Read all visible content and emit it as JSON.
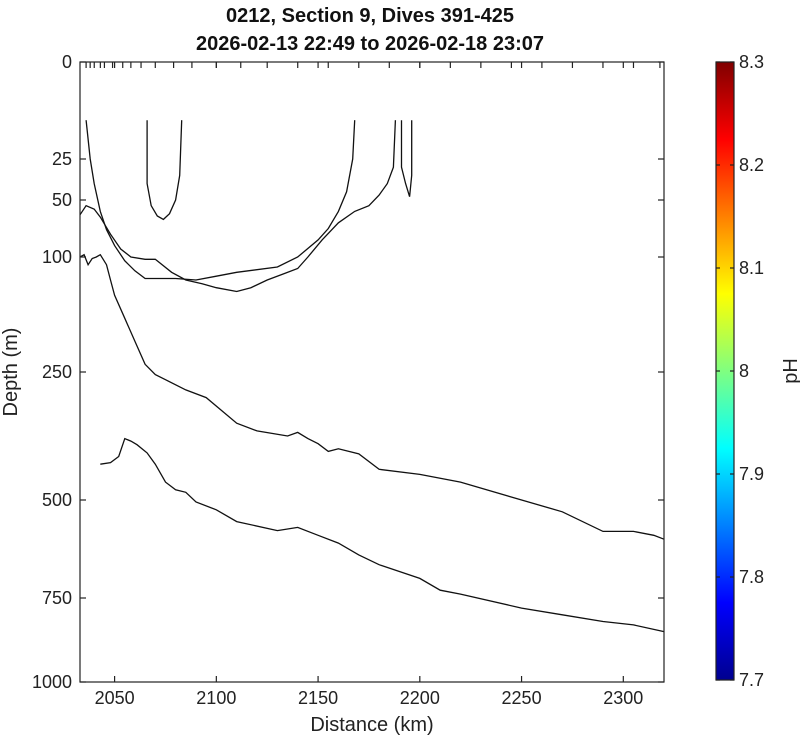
{
  "chart_data": {
    "type": "contour",
    "title_lines": [
      "0212, Section 9, Dives 391-425",
      "2026-02-13 22:49 to 2026-02-18 23:07"
    ],
    "xlabel": "Distance (km)",
    "ylabel": "Depth (m)",
    "xlim": [
      2033,
      2320
    ],
    "x_ticks": [
      2050,
      2100,
      2150,
      2200,
      2250,
      2300
    ],
    "y_scale": "stretched (depth)",
    "y_ticks": [
      {
        "value": 0,
        "label": "0"
      },
      {
        "value": 25,
        "label": "25"
      },
      {
        "value": 50,
        "label": "50"
      },
      {
        "value": 100,
        "label": "100"
      },
      {
        "value": 250,
        "label": "250"
      },
      {
        "value": 500,
        "label": "500"
      },
      {
        "value": 750,
        "label": "750"
      },
      {
        "value": 1000,
        "label": "1000"
      }
    ],
    "y_reference": [
      [
        0,
        0
      ],
      [
        25,
        25
      ],
      [
        50,
        50
      ],
      [
        100,
        100
      ],
      [
        250,
        250
      ],
      [
        500,
        500
      ],
      [
        750,
        750
      ],
      [
        1000,
        1000
      ]
    ],
    "dive_marks_km": [
      2036,
      2038,
      2040,
      2043,
      2045,
      2049,
      2054,
      2058,
      2063,
      2070,
      2079,
      2088,
      2100,
      2112,
      2125,
      2140,
      2155,
      2170,
      2185,
      2200,
      2215,
      2230,
      2245,
      2260,
      2275,
      2290,
      2305,
      2318
    ],
    "contours": [
      {
        "points": [
          [
            2066,
            15
          ],
          [
            2066,
            40
          ],
          [
            2068,
            55
          ],
          [
            2071,
            64
          ],
          [
            2074,
            67
          ],
          [
            2077,
            62
          ],
          [
            2080,
            50
          ],
          [
            2082,
            35
          ],
          [
            2083,
            15
          ]
        ]
      },
      {
        "points": [
          [
            2036,
            15
          ],
          [
            2038,
            25
          ],
          [
            2040,
            40
          ],
          [
            2043,
            60
          ],
          [
            2046,
            76
          ],
          [
            2050,
            90
          ],
          [
            2055,
            105
          ],
          [
            2060,
            118
          ],
          [
            2065,
            128
          ],
          [
            2080,
            128
          ],
          [
            2090,
            130
          ],
          [
            2100,
            125
          ],
          [
            2110,
            120
          ],
          [
            2130,
            113
          ],
          [
            2140,
            100
          ],
          [
            2150,
            85
          ],
          [
            2155,
            75
          ],
          [
            2160,
            60
          ],
          [
            2164,
            45
          ],
          [
            2167,
            25
          ],
          [
            2168,
            15
          ]
        ]
      },
      {
        "points": [
          [
            2188,
            15
          ],
          [
            2187,
            30
          ],
          [
            2184,
            40
          ],
          [
            2180,
            47
          ],
          [
            2175,
            55
          ],
          [
            2168,
            60
          ],
          [
            2160,
            70
          ],
          [
            2152,
            85
          ],
          [
            2145,
            100
          ],
          [
            2140,
            115
          ],
          [
            2133,
            122
          ],
          [
            2125,
            130
          ],
          [
            2117,
            140
          ],
          [
            2110,
            145
          ],
          [
            2100,
            140
          ],
          [
            2093,
            135
          ],
          [
            2085,
            130
          ],
          [
            2078,
            120
          ],
          [
            2070,
            103
          ],
          [
            2065,
            103
          ],
          [
            2058,
            100
          ],
          [
            2053,
            93
          ],
          [
            2048,
            80
          ],
          [
            2043,
            65
          ],
          [
            2040,
            58
          ],
          [
            2036,
            55
          ],
          [
            2033,
            63
          ]
        ]
      },
      {
        "points": [
          [
            2191,
            15
          ],
          [
            2191,
            30
          ],
          [
            2193,
            40
          ],
          [
            2195,
            48
          ],
          [
            2196,
            35
          ],
          [
            2196,
            15
          ]
        ]
      },
      {
        "points": [
          [
            2033,
            100
          ],
          [
            2035,
            98
          ],
          [
            2037,
            110
          ],
          [
            2039,
            102
          ],
          [
            2041,
            100
          ],
          [
            2043,
            98
          ],
          [
            2046,
            110
          ],
          [
            2048,
            130
          ],
          [
            2050,
            150
          ],
          [
            2055,
            180
          ],
          [
            2060,
            210
          ],
          [
            2065,
            240
          ],
          [
            2070,
            255
          ],
          [
            2075,
            265
          ],
          [
            2085,
            285
          ],
          [
            2095,
            300
          ],
          [
            2110,
            350
          ],
          [
            2120,
            365
          ],
          [
            2135,
            375
          ],
          [
            2140,
            368
          ],
          [
            2145,
            380
          ],
          [
            2150,
            390
          ],
          [
            2155,
            405
          ],
          [
            2160,
            400
          ],
          [
            2170,
            410
          ],
          [
            2180,
            440
          ],
          [
            2200,
            450
          ],
          [
            2220,
            465
          ],
          [
            2250,
            500
          ],
          [
            2270,
            530
          ],
          [
            2290,
            580
          ],
          [
            2305,
            580
          ],
          [
            2315,
            590
          ],
          [
            2320,
            600
          ]
        ]
      },
      {
        "points": [
          [
            2043,
            430
          ],
          [
            2048,
            427
          ],
          [
            2052,
            415
          ],
          [
            2055,
            380
          ],
          [
            2058,
            385
          ],
          [
            2061,
            392
          ],
          [
            2066,
            408
          ],
          [
            2070,
            430
          ],
          [
            2075,
            465
          ],
          [
            2080,
            480
          ],
          [
            2085,
            485
          ],
          [
            2090,
            505
          ],
          [
            2100,
            525
          ],
          [
            2110,
            555
          ],
          [
            2130,
            578
          ],
          [
            2140,
            570
          ],
          [
            2150,
            590
          ],
          [
            2160,
            610
          ],
          [
            2170,
            640
          ],
          [
            2180,
            665
          ],
          [
            2200,
            700
          ],
          [
            2210,
            730
          ],
          [
            2220,
            740
          ],
          [
            2250,
            780
          ],
          [
            2270,
            800
          ],
          [
            2290,
            820
          ],
          [
            2305,
            830
          ],
          [
            2320,
            850
          ]
        ]
      }
    ]
  },
  "colorbar": {
    "label": "pH",
    "min": 7.7,
    "max": 8.3,
    "ticks": [
      "8.3",
      "8.2",
      "8.1",
      "8",
      "7.9",
      "7.8",
      "7.7"
    ],
    "colormap": [
      "#00008f",
      "#0000ff",
      "#0080ff",
      "#00ffff",
      "#80ff80",
      "#ffff00",
      "#ff8000",
      "#ff0000",
      "#800000"
    ]
  }
}
